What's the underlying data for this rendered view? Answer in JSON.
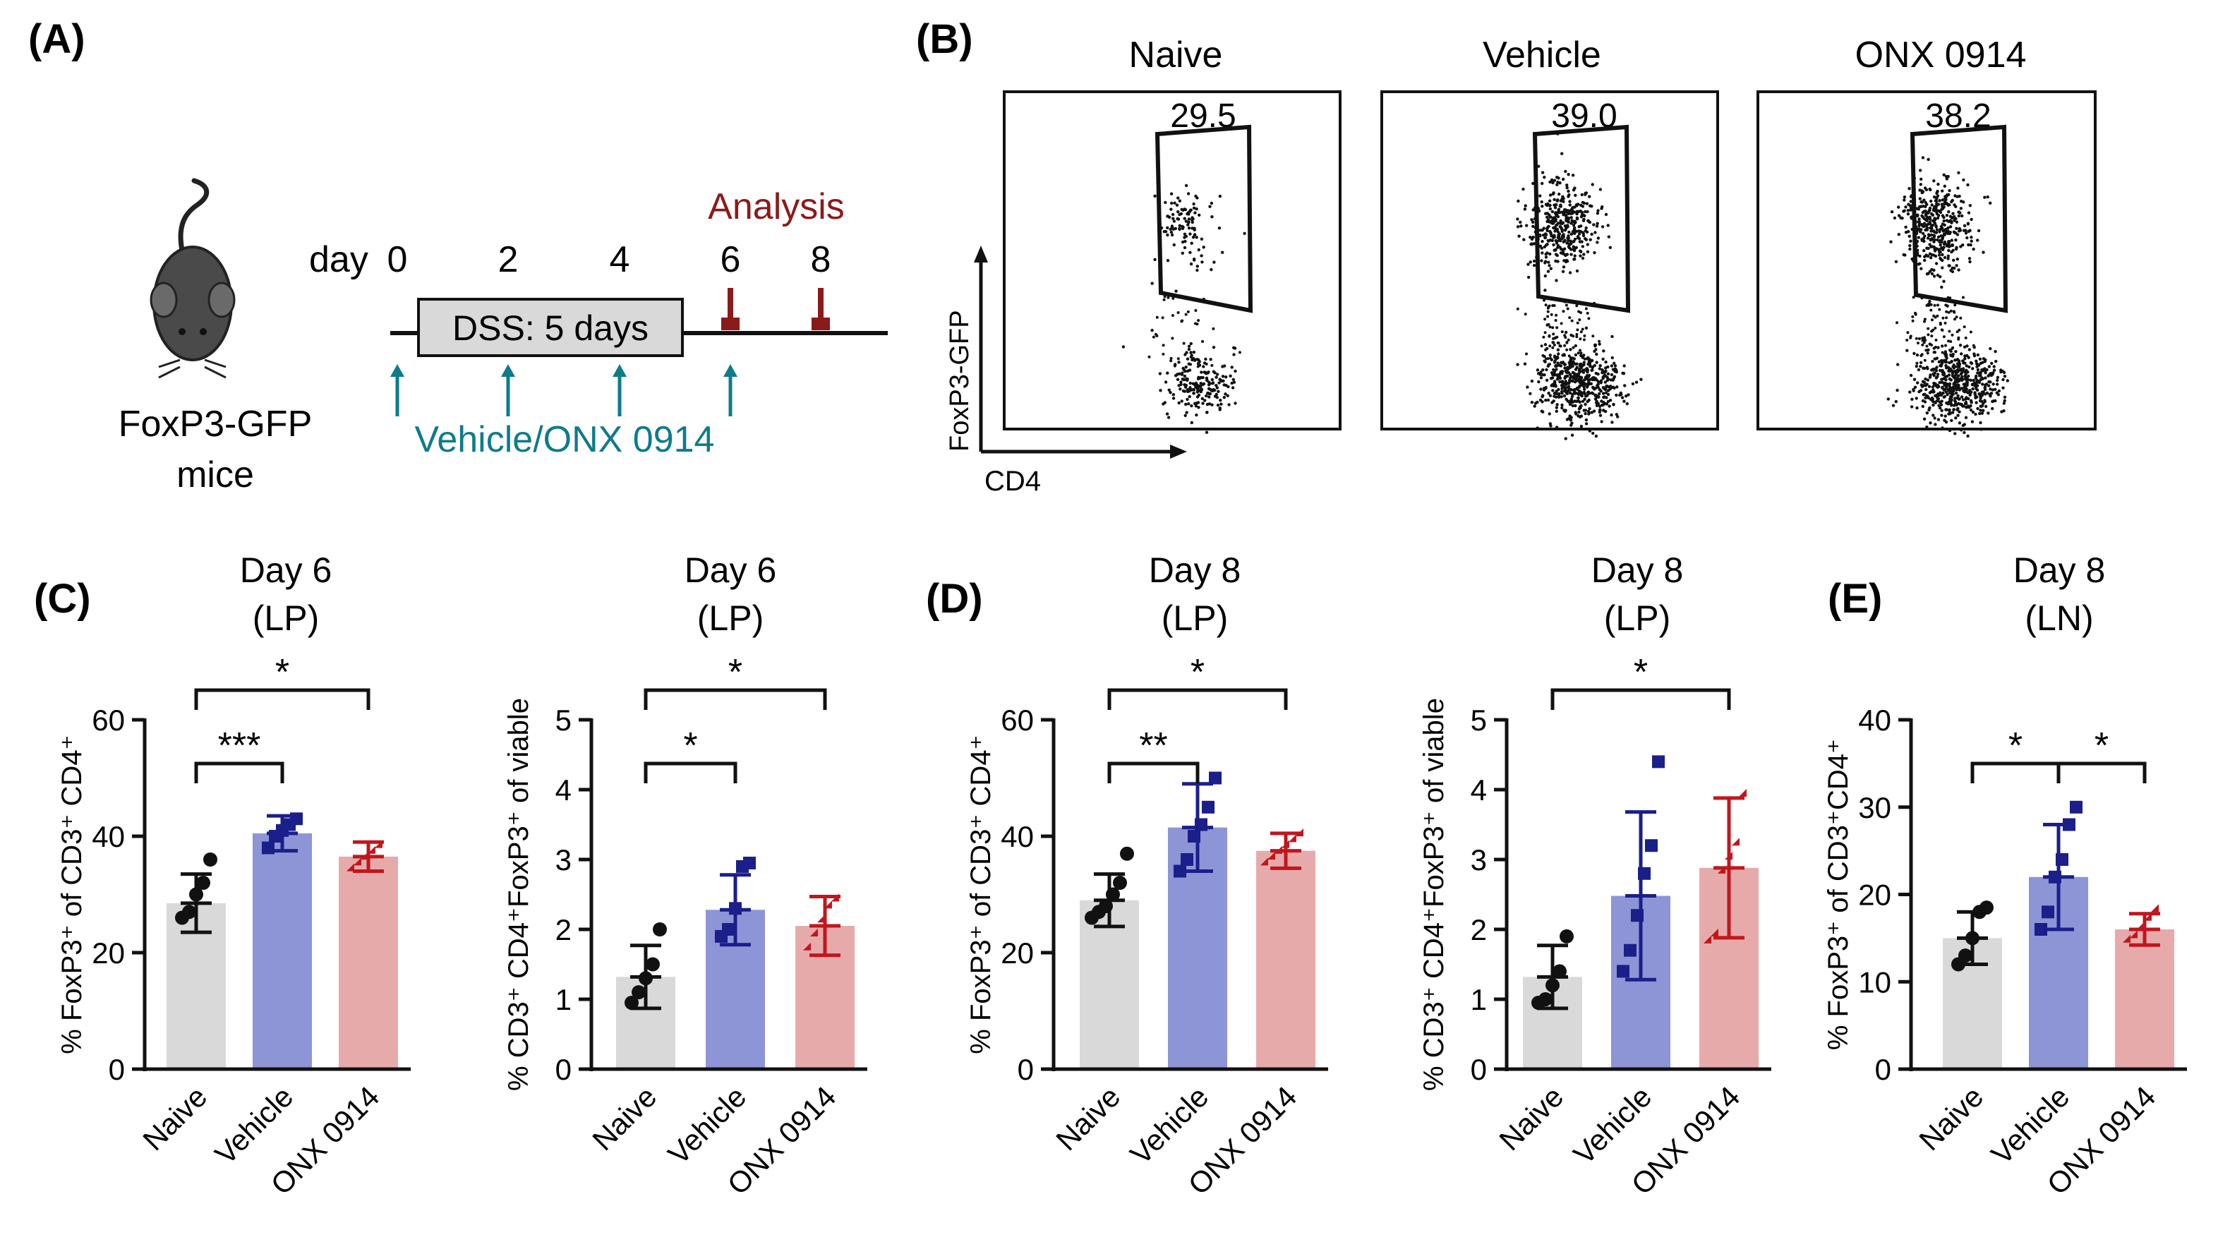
{
  "panel_labels": {
    "A": "(A)",
    "B": "(B)",
    "C": "(C)",
    "D": "(D)",
    "E": "(E)"
  },
  "colors": {
    "naive_bar": "#d9d9d9",
    "naive_point": "#111111",
    "vehicle_bar": "#8e95d6",
    "vehicle_point": "#1a1f8a",
    "onx_bar": "#e7aaaa",
    "onx_point": "#c0161d",
    "analysis": "#8b1a1a",
    "treatment": "#0e7b8a",
    "dss_box": "#d9d9d9"
  },
  "schematic": {
    "mouse_label_1": "FoxP3-GFP",
    "mouse_label_2": "mice",
    "day_label": "day",
    "days": [
      "0",
      "2",
      "4",
      "6",
      "8"
    ],
    "dss_label": "DSS: 5 days",
    "analysis_label": "Analysis",
    "treatment_label": "Vehicle/ONX 0914"
  },
  "flow": {
    "x_axis_label": "CD4",
    "y_axis_label": "FoxP3-GFP",
    "plots": [
      {
        "title": "Naive",
        "gate_value": "29.5"
      },
      {
        "title": "Vehicle",
        "gate_value": "39.0"
      },
      {
        "title": "ONX 0914",
        "gate_value": "38.2"
      }
    ]
  },
  "chart_data": [
    {
      "type": "bar",
      "panel": "C",
      "title": [
        "Day 6",
        "(LP)"
      ],
      "ylabel": "% FoxP3⁺ of CD3⁺ CD4⁺",
      "categories": [
        "Naive",
        "Vehicle",
        "ONX 0914"
      ],
      "ylim": [
        0,
        60
      ],
      "yticks": [
        0,
        20,
        40,
        60
      ],
      "means": [
        28.5,
        40.5,
        36.5
      ],
      "sd": [
        5,
        3,
        2.5
      ],
      "points": [
        [
          26,
          27,
          30,
          32,
          36
        ],
        [
          38,
          40,
          41,
          42,
          43
        ],
        [
          34,
          35,
          36,
          37,
          38
        ]
      ],
      "marker": [
        "circle",
        "square",
        "triangle"
      ],
      "brackets": [
        {
          "from": 0,
          "to": 1,
          "label": "***",
          "level": 0
        },
        {
          "from": 0,
          "to": 2,
          "label": "*",
          "level": 1
        }
      ]
    },
    {
      "type": "bar",
      "panel": "C",
      "title": [
        "Day 6",
        "(LP)"
      ],
      "ylabel": "% CD3⁺ CD4⁺FoxP3⁺ of viable",
      "categories": [
        "Naive",
        "Vehicle",
        "ONX 0914"
      ],
      "ylim": [
        0,
        5
      ],
      "yticks": [
        0,
        1,
        2,
        3,
        4,
        5
      ],
      "means": [
        1.32,
        2.28,
        2.05
      ],
      "sd": [
        0.45,
        0.5,
        0.42
      ],
      "points": [
        [
          0.95,
          1.1,
          1.3,
          1.5,
          2.0
        ],
        [
          1.9,
          2.0,
          2.3,
          2.9,
          2.95
        ],
        [
          1.7,
          1.9,
          2.1,
          2.3,
          2.4
        ]
      ],
      "marker": [
        "circle",
        "square",
        "triangle"
      ],
      "brackets": [
        {
          "from": 0,
          "to": 1,
          "label": "*",
          "level": 0
        },
        {
          "from": 0,
          "to": 2,
          "label": "*",
          "level": 1
        }
      ]
    },
    {
      "type": "bar",
      "panel": "D",
      "title": [
        "Day 8",
        "(LP)"
      ],
      "ylabel": "% FoxP3⁺ of CD3⁺ CD4⁺",
      "categories": [
        "Naive",
        "Vehicle",
        "ONX 0914"
      ],
      "ylim": [
        0,
        60
      ],
      "yticks": [
        0,
        20,
        40,
        60
      ],
      "means": [
        29,
        41.5,
        37.5
      ],
      "sd": [
        4.5,
        7.5,
        3
      ],
      "points": [
        [
          26,
          27,
          28,
          30,
          32,
          37
        ],
        [
          34,
          36,
          40,
          42,
          45,
          50
        ],
        [
          35,
          36,
          37,
          38,
          39,
          40
        ]
      ],
      "marker": [
        "circle",
        "square",
        "triangle"
      ],
      "brackets": [
        {
          "from": 0,
          "to": 1,
          "label": "**",
          "level": 0
        },
        {
          "from": 0,
          "to": 2,
          "label": "*",
          "level": 1
        }
      ]
    },
    {
      "type": "bar",
      "panel": "D",
      "title": [
        "Day 8",
        "(LP)"
      ],
      "ylabel": "% CD3⁺ CD4⁺FoxP3⁺ of viable",
      "categories": [
        "Naive",
        "Vehicle",
        "ONX 0914"
      ],
      "ylim": [
        0,
        5
      ],
      "yticks": [
        0,
        1,
        2,
        3,
        4,
        5
      ],
      "means": [
        1.32,
        2.48,
        2.88
      ],
      "sd": [
        0.45,
        1.2,
        1.0
      ],
      "points": [
        [
          0.95,
          1.0,
          1.2,
          1.4,
          1.9
        ],
        [
          1.4,
          1.7,
          2.2,
          2.8,
          3.2,
          4.4
        ],
        [
          1.8,
          1.9,
          2.8,
          3.0,
          3.2,
          3.9
        ]
      ],
      "marker": [
        "circle",
        "square",
        "triangle"
      ],
      "brackets": [
        {
          "from": 0,
          "to": 2,
          "label": "*",
          "level": 1
        }
      ]
    },
    {
      "type": "bar",
      "panel": "E",
      "title": [
        "Day 8",
        "(LN)"
      ],
      "ylabel": "% FoxP3⁺ of CD3⁺CD4⁺",
      "categories": [
        "Naive",
        "Vehicle",
        "ONX 0914"
      ],
      "ylim": [
        0,
        40
      ],
      "yticks": [
        0,
        10,
        20,
        30,
        40
      ],
      "means": [
        15,
        22,
        16
      ],
      "sd": [
        3,
        6,
        1.8
      ],
      "points": [
        [
          12,
          13,
          15,
          18,
          18.5
        ],
        [
          16,
          18,
          22,
          24,
          28,
          30
        ],
        [
          14.5,
          15,
          16,
          17,
          18
        ]
      ],
      "marker": [
        "circle",
        "square",
        "triangle"
      ],
      "brackets": [
        {
          "from": 0,
          "to": 1,
          "label": "*",
          "level": 0
        },
        {
          "from": 1,
          "to": 2,
          "label": "*",
          "level": 0
        }
      ]
    }
  ]
}
